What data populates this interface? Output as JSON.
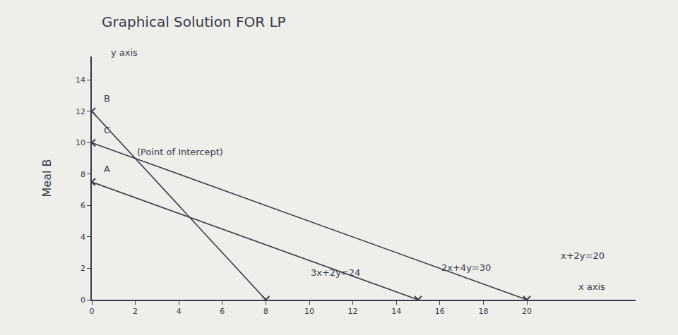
{
  "chart_data": {
    "type": "line",
    "title": "Graphical Solution FOR LP",
    "ylabel": "Meal B",
    "color": "#3a3a4a",
    "marker": "x",
    "series": [
      {
        "x": [
          0,
          8
        ],
        "values": [
          12,
          0
        ],
        "color": "#3a3a4a"
      },
      {
        "x": [
          0,
          15
        ],
        "values": [
          7.5,
          0
        ],
        "color": "#3a3a4a"
      },
      {
        "x": [
          0,
          20
        ],
        "values": [
          10,
          0
        ],
        "color": "#3a3a4a"
      }
    ],
    "annotations": [
      {
        "text": "3x+2y=24",
        "x": 10,
        "y": 1.3
      },
      {
        "text": "2x+4y=30",
        "x": 16,
        "y": 1.6
      },
      {
        "text": "x+2y=20",
        "x": 21.5,
        "y": 2.4
      },
      {
        "text": "A",
        "x": 0.5,
        "y": 7.9
      },
      {
        "text": "B",
        "x": 0.5,
        "y": 12.4
      },
      {
        "text": "C",
        "x": 0.5,
        "y": 10.4
      },
      {
        "text": "(Point of Intercept)",
        "x": 2,
        "y": 9
      },
      {
        "text": "x axis",
        "x": 22.3,
        "y": 0.4
      },
      {
        "text": "y axis",
        "x": 0.8,
        "y": 15.3
      }
    ],
    "xlim": [
      0,
      25
    ],
    "xticks": [
      0,
      2,
      4,
      6,
      8,
      10,
      12,
      14,
      16,
      18,
      20
    ],
    "ylim": [
      0,
      15.5
    ],
    "yticks": [
      0,
      2,
      4,
      6,
      8,
      10,
      12,
      14
    ],
    "grid": false
  }
}
